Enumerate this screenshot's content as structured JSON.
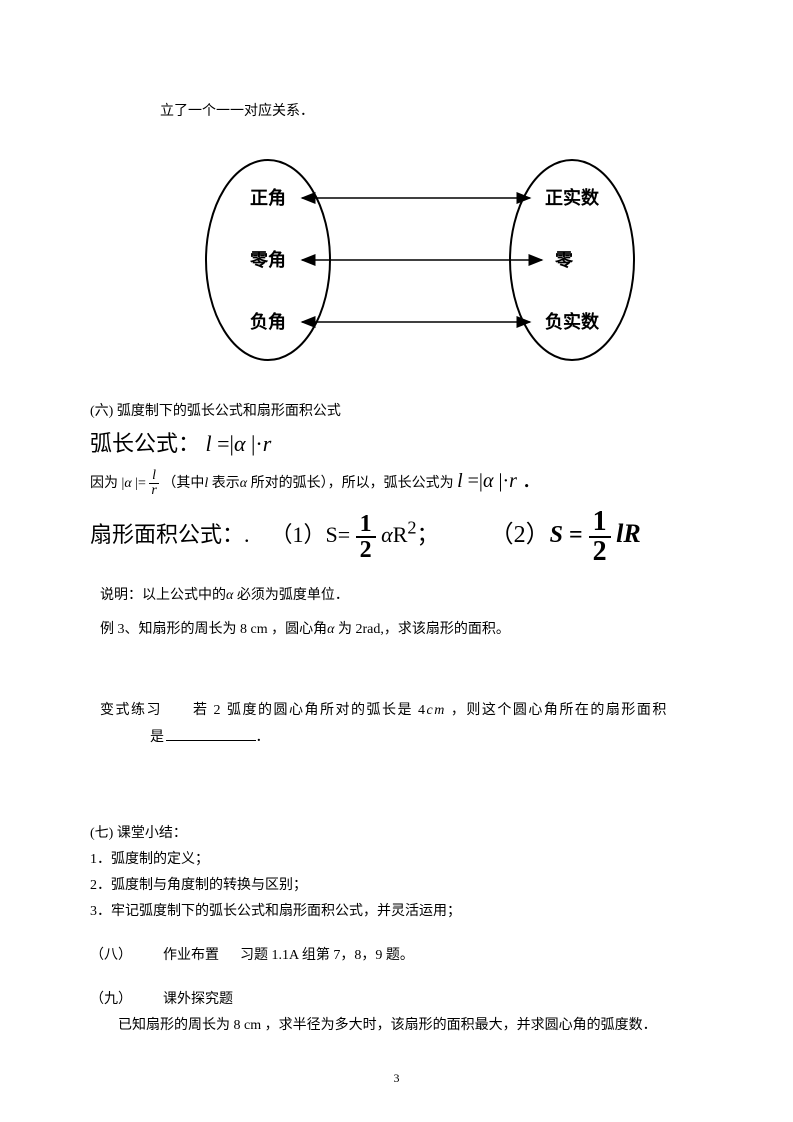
{
  "top_line": "立了一个一一对应关系．",
  "diagram": {
    "left_labels": {
      "pos": "正角",
      "zero": "零角",
      "neg": "负角"
    },
    "right_labels": {
      "pos": "正实数",
      "zero": "零",
      "neg": "负实数"
    },
    "ellipse_stroke": "#000000",
    "ellipse_stroke_width": 2,
    "arrow_stroke": "#000000",
    "arrow_stroke_width": 1.5,
    "label_font_size": 18,
    "label_font_weight": "bold",
    "label_color": "#000000"
  },
  "section6": {
    "title": "(六) 弧度制下的弧长公式和扇形面积公式",
    "arc_label": "弧长公式：",
    "arc_formula_html": "<span class='it'>l</span> =|<span class='alpha'>α</span> |·<span class='it'>r</span>",
    "because_prefix": "因为",
    "because_mid1": "|",
    "because_alpha": "α",
    "because_mid2": " |=",
    "because_frac_num": "l",
    "because_frac_den": "r",
    "because_paren": "（其中",
    "because_paren_l": "l",
    "because_paren_tail": " 表示",
    "because_paren_alpha": "α",
    "because_paren_end": " 所对的弧长），所以，弧长公式为",
    "because_formula_html": "<span class='it'>l</span> =|<span class='alpha'>α</span> |·<span class='it'>r</span> ．",
    "sector_label": "扇形面积公式：.",
    "sector_part1_prefix": "（1）S=",
    "sector_frac_num": "1",
    "sector_frac_den": "2",
    "sector_part1_suffix_html": "<span class='alpha'>α</span>R<sup>2</sup>；",
    "sector_part2_prefix_html": "（2）<span class='bold it'>S</span> <span class='bold'>=</span> ",
    "sector_part2_suffix_html": "<span class='bold it'>lR</span>",
    "note_prefix": "说明：以上公式中的",
    "note_alpha": "α",
    "note_suffix": " 必须为弧度单位．",
    "example_prefix": "例 3、知扇形的周长为 8 cm ，圆心角",
    "example_alpha": "α",
    "example_suffix": " 为 2rad,，求该扇形的面积。"
  },
  "variant": {
    "prefix": "变式练习　　若 2 弧度的圆心角所对的弧长是 4",
    "cm_it": "cm",
    "mid": " ，则这个圆心角所在的扇形面积",
    "line2_prefix": "是",
    "line2_suffix": "．"
  },
  "section7": {
    "title": "(七) 课堂小结：",
    "item1": "1．弧度制的定义；",
    "item2": "2．弧度制与角度制的转换与区别；",
    "item3": "3．牢记弧度制下的弧长公式和扇形面积公式，并灵活运用；"
  },
  "section8": {
    "left": "（八）",
    "label": "作业布置",
    "text": "习题 1.1A 组第 7，8，9 题。"
  },
  "section9": {
    "left": "（九）",
    "label": "课外探究题",
    "body": "已知扇形的周长为 8 cm ，求半径为多大时，该扇形的面积最大，并求圆心角的弧度数．"
  },
  "page_number": "3"
}
